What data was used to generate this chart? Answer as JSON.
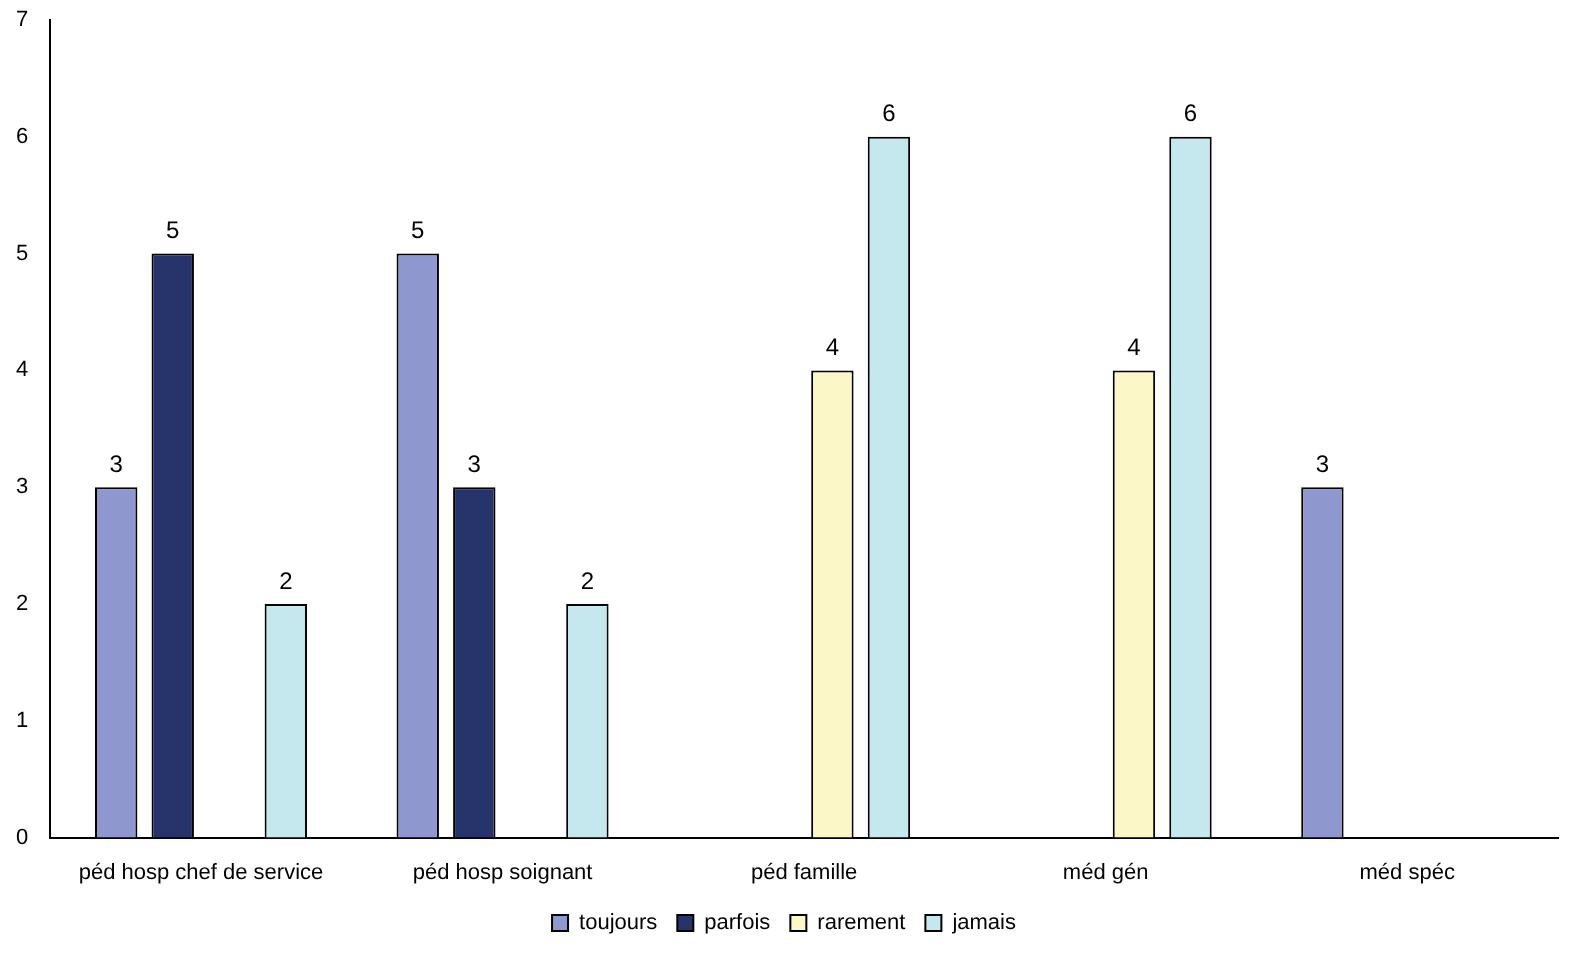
{
  "chart_data": {
    "type": "bar",
    "categories": [
      "péd hosp chef de service",
      "péd hosp soignant",
      "péd famille",
      "méd gén",
      "méd spéc"
    ],
    "series": [
      {
        "name": "toujours",
        "color": "#8f97cf",
        "values": [
          3,
          5,
          null,
          null,
          3
        ]
      },
      {
        "name": "parfois",
        "color": "#27336b",
        "values": [
          5,
          3,
          null,
          null,
          null
        ]
      },
      {
        "name": "rarement",
        "color": "#fbf7c6",
        "values": [
          null,
          null,
          4,
          4,
          null
        ]
      },
      {
        "name": "jamais",
        "color": "#c5e8ee",
        "values": [
          2,
          2,
          6,
          6,
          null
        ]
      }
    ],
    "ylim": [
      0,
      7
    ],
    "yticks": [
      0,
      1,
      2,
      3,
      4,
      5,
      6,
      7
    ],
    "grid": false,
    "legend": "bottom",
    "data_labels": true
  }
}
